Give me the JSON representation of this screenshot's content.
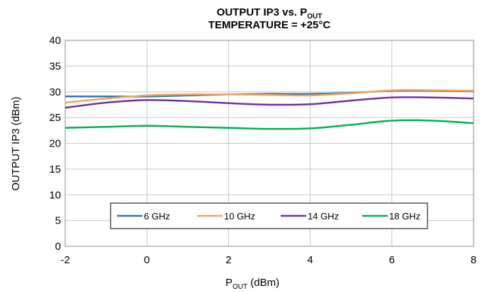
{
  "chart_data": {
    "type": "line",
    "title_line1": "OUTPUT IP3 vs. P",
    "title_line1_sub": "OUT",
    "title_line2": "TEMPERATURE = +25°C",
    "xlabel": "P",
    "xlabel_sub": "OUT",
    "xlabel_unit": " (dBm)",
    "ylabel": "OUTPUT IP3 (dBm)",
    "xlim": [
      -2,
      8
    ],
    "ylim": [
      0,
      40
    ],
    "xticks": [
      -2,
      0,
      2,
      4,
      6,
      8
    ],
    "yticks": [
      0,
      5,
      10,
      15,
      20,
      25,
      30,
      35,
      40
    ],
    "grid": true,
    "legend_position": "inside-bottom-center",
    "series": [
      {
        "name": "6 GHz",
        "color": "#2e75b6",
        "x": [
          -2,
          -1,
          0,
          1,
          2,
          3,
          4,
          5,
          6,
          7,
          8
        ],
        "y": [
          29.1,
          29.1,
          29.1,
          29.3,
          29.5,
          29.6,
          29.6,
          29.8,
          30.2,
          30.2,
          30.1
        ]
      },
      {
        "name": "10 GHz",
        "color": "#f4a35a",
        "x": [
          -2,
          -1,
          0,
          1,
          2,
          3,
          4,
          5,
          6,
          7,
          8
        ],
        "y": [
          27.9,
          28.7,
          29.3,
          29.5,
          29.5,
          29.4,
          29.3,
          29.7,
          30.3,
          30.3,
          30.2
        ]
      },
      {
        "name": "14 GHz",
        "color": "#7030a0",
        "x": [
          -2,
          -1,
          0,
          1,
          2,
          3,
          4,
          5,
          6,
          7,
          8
        ],
        "y": [
          26.9,
          27.9,
          28.4,
          28.2,
          27.8,
          27.5,
          27.6,
          28.3,
          28.9,
          28.9,
          28.7
        ]
      },
      {
        "name": "18 GHz",
        "color": "#00b050",
        "x": [
          -2,
          -1,
          0,
          1,
          2,
          3,
          4,
          5,
          6,
          7,
          8
        ],
        "y": [
          23.0,
          23.2,
          23.4,
          23.2,
          23.0,
          22.8,
          22.9,
          23.6,
          24.4,
          24.4,
          23.9
        ]
      }
    ]
  }
}
